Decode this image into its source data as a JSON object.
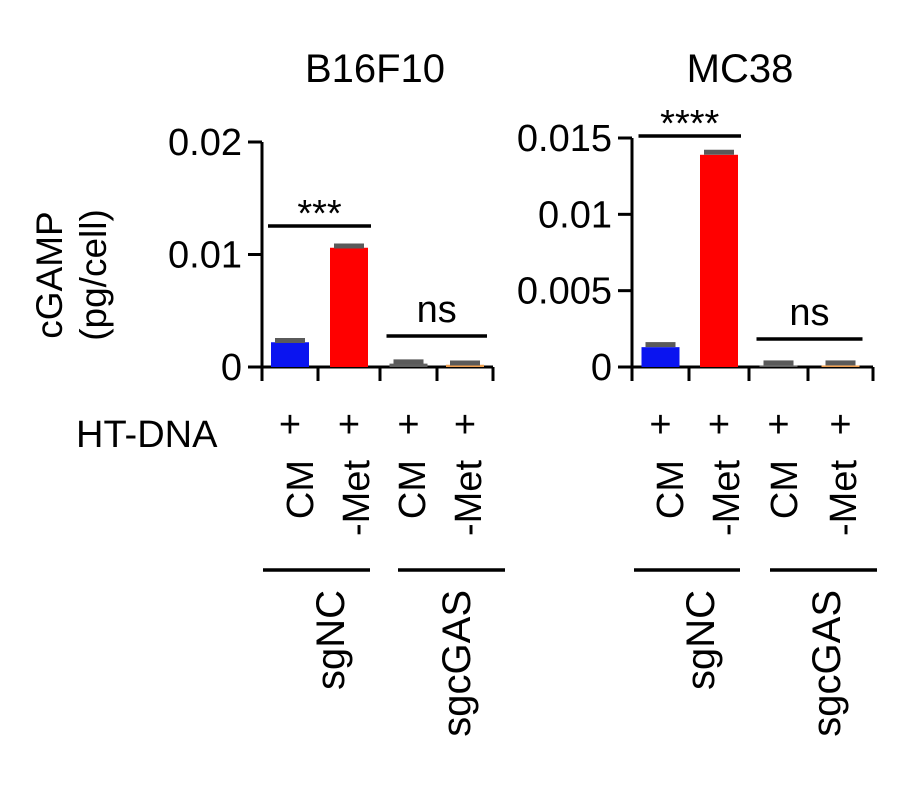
{
  "chart_data": [
    {
      "type": "bar",
      "title": "B16F10",
      "ylabel_line1": "cGAMP",
      "ylabel_line2": "(pg/cell)",
      "ylim": [
        0,
        0.02
      ],
      "ytick_values": [
        0,
        0.01,
        0.02
      ],
      "ytick_labels": [
        "0",
        "0.01",
        "0.02"
      ],
      "row_label": "HT-DNA",
      "bars": [
        {
          "condition": "CM",
          "group": "sgNC",
          "ht_dna": "+",
          "value": 0.0022,
          "error": 0.0002,
          "color": "#0a14f0"
        },
        {
          "condition": "-Met",
          "group": "sgNC",
          "ht_dna": "+",
          "value": 0.0106,
          "error": 0.0002,
          "color": "#ff0000"
        },
        {
          "condition": "CM",
          "group": "sgcGAS",
          "ht_dna": "+",
          "value": 0.0003,
          "error": 0.0002,
          "color": "#606060"
        },
        {
          "condition": "-Met",
          "group": "sgcGAS",
          "ht_dna": "+",
          "value": 0.0002,
          "error": 0.0002,
          "color": "#f0a050"
        }
      ],
      "groups": [
        "sgNC",
        "sgcGAS"
      ],
      "annotations": [
        {
          "label": "***",
          "from_bar": 0,
          "to_bar": 1
        },
        {
          "label": "ns",
          "from_bar": 2,
          "to_bar": 3
        }
      ]
    },
    {
      "type": "bar",
      "title": "MC38",
      "ylim": [
        0,
        0.015
      ],
      "ytick_values": [
        0,
        0.005,
        0.01,
        0.015
      ],
      "ytick_labels": [
        "0",
        "0.005",
        "0.01",
        "0.015"
      ],
      "bars": [
        {
          "condition": "CM",
          "group": "sgNC",
          "ht_dna": "+",
          "value": 0.0013,
          "error": 0.0002,
          "color": "#0a14f0"
        },
        {
          "condition": "-Met",
          "group": "sgNC",
          "ht_dna": "+",
          "value": 0.0139,
          "error": 0.0002,
          "color": "#ff0000"
        },
        {
          "condition": "CM",
          "group": "sgcGAS",
          "ht_dna": "+",
          "value": 0.0001,
          "error": 0.0002,
          "color": "#606060"
        },
        {
          "condition": "-Met",
          "group": "sgcGAS",
          "ht_dna": "+",
          "value": 0.0001,
          "error": 0.0002,
          "color": "#f0a050"
        }
      ],
      "groups": [
        "sgNC",
        "sgcGAS"
      ],
      "annotations": [
        {
          "label": "****",
          "from_bar": 0,
          "to_bar": 1
        },
        {
          "label": "ns",
          "from_bar": 2,
          "to_bar": 3
        }
      ]
    }
  ]
}
